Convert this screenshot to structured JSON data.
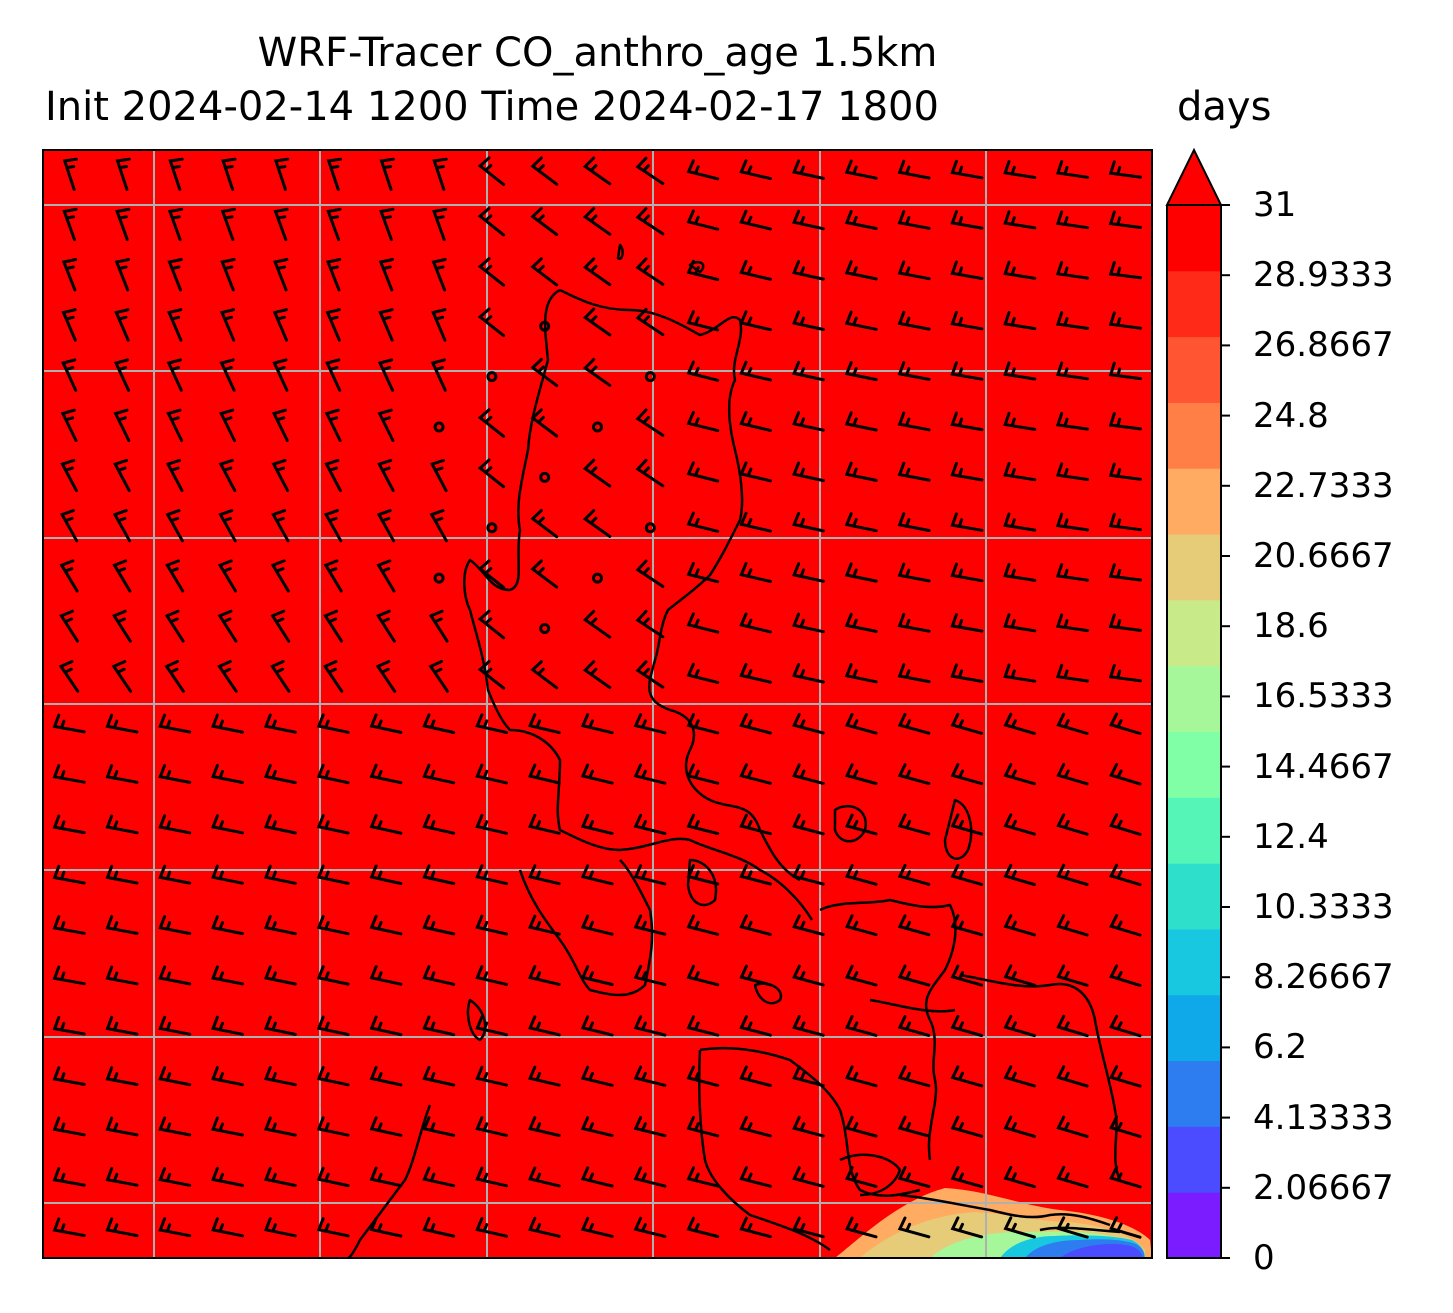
{
  "title": {
    "line1": "WRF-Tracer CO_anthro_age 1.5km",
    "line2": "Init 2024-02-14 1200 Time 2024-02-17 1800",
    "units": "days"
  },
  "map": {
    "field": "CO_anthro_age",
    "background_value_days": 31,
    "gridlines": true,
    "coastlines": true,
    "wind_barbs": true,
    "low_age_patch_location": "bottom-right"
  },
  "colorbar": {
    "min": 0,
    "max": 31,
    "extend": "max",
    "ticks": [
      "0",
      "2.06667",
      "4.13333",
      "6.2",
      "8.26667",
      "10.3333",
      "12.4",
      "14.4667",
      "16.5333",
      "18.6",
      "20.6667",
      "22.7333",
      "24.8",
      "26.8667",
      "28.9333",
      "31"
    ],
    "colors": [
      "#7a1cff",
      "#4b4bff",
      "#2d7cf0",
      "#0fa8e8",
      "#18c8e0",
      "#2ee0cc",
      "#55f5b8",
      "#80ffa6",
      "#a6f79a",
      "#c9ea88",
      "#e6cb78",
      "#ffab62",
      "#ff7f47",
      "#ff5533",
      "#ff2a18",
      "#ff0000"
    ]
  }
}
